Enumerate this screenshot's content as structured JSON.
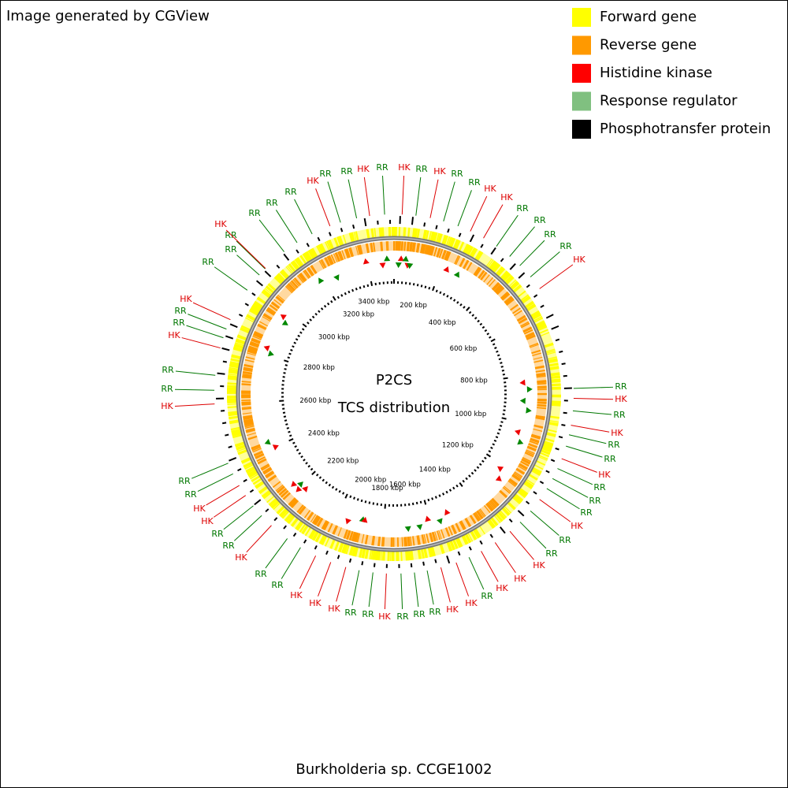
{
  "header": {
    "credit": "Image generated by CGView"
  },
  "legend": [
    {
      "label": "Forward gene",
      "color": "#ffff00"
    },
    {
      "label": "Reverse gene",
      "color": "#ff9900"
    },
    {
      "label": "Histidine kinase",
      "color": "#ff0000"
    },
    {
      "label": "Response regulator",
      "color": "#80c080"
    },
    {
      "label": "Phosphotransfer protein",
      "color": "#000000"
    }
  ],
  "center": {
    "title": "P2CS",
    "subtitle": "TCS distribution"
  },
  "scale_labels": [
    "200 kbp",
    "400 kbp",
    "600 kbp",
    "800 kbp",
    "1000 kbp",
    "1200 kbp",
    "1400 kbp",
    "1600 kbp",
    "1800 kbp",
    "2000 kbp",
    "2200 kbp",
    "2400 kbp",
    "2600 kbp",
    "2800 kbp",
    "3000 kbp",
    "3200 kbp",
    "3400 kbp"
  ],
  "feature_labels": [
    {
      "text": "HK",
      "color": "#dd0000"
    },
    {
      "text": "RR",
      "color": "#007700"
    },
    {
      "text": "RR",
      "color": "#007700"
    },
    {
      "text": "HK",
      "color": "#dd0000"
    },
    {
      "text": "RR",
      "color": "#007700"
    },
    {
      "text": "HK",
      "color": "#dd0000"
    },
    {
      "text": "RR",
      "color": "#007700"
    },
    {
      "text": "HK",
      "color": "#dd0000"
    },
    {
      "text": "RR",
      "color": "#007700"
    },
    {
      "text": "RR",
      "color": "#007700"
    },
    {
      "text": "HK",
      "color": "#dd0000"
    },
    {
      "text": "HK",
      "color": "#dd0000"
    },
    {
      "text": "RR",
      "color": "#007700"
    },
    {
      "text": "RR",
      "color": "#007700"
    },
    {
      "text": "RR",
      "color": "#007700"
    },
    {
      "text": "RR",
      "color": "#007700"
    },
    {
      "text": "HK",
      "color": "#dd0000"
    },
    {
      "text": "RR",
      "color": "#007700"
    },
    {
      "text": "HK",
      "color": "#dd0000"
    },
    {
      "text": "RR",
      "color": "#007700"
    },
    {
      "text": "HK",
      "color": "#dd0000"
    },
    {
      "text": "RR",
      "color": "#007700"
    },
    {
      "text": "RR",
      "color": "#007700"
    },
    {
      "text": "HK",
      "color": "#dd0000"
    },
    {
      "text": "RR",
      "color": "#007700"
    },
    {
      "text": "RR",
      "color": "#007700"
    },
    {
      "text": "RR",
      "color": "#007700"
    },
    {
      "text": "HK",
      "color": "#dd0000"
    },
    {
      "text": "RR",
      "color": "#007700"
    },
    {
      "text": "RR",
      "color": "#007700"
    },
    {
      "text": "HK",
      "color": "#dd0000"
    },
    {
      "text": "HK",
      "color": "#dd0000"
    },
    {
      "text": "HK",
      "color": "#dd0000"
    },
    {
      "text": "RR",
      "color": "#007700"
    },
    {
      "text": "HK",
      "color": "#dd0000"
    },
    {
      "text": "HK",
      "color": "#dd0000"
    },
    {
      "text": "RR",
      "color": "#007700"
    },
    {
      "text": "RR",
      "color": "#007700"
    },
    {
      "text": "RR",
      "color": "#007700"
    },
    {
      "text": "HK",
      "color": "#dd0000"
    },
    {
      "text": "RR",
      "color": "#007700"
    },
    {
      "text": "RR",
      "color": "#007700"
    },
    {
      "text": "HK",
      "color": "#dd0000"
    },
    {
      "text": "HK",
      "color": "#dd0000"
    },
    {
      "text": "HK",
      "color": "#dd0000"
    },
    {
      "text": "RR",
      "color": "#007700"
    },
    {
      "text": "RR",
      "color": "#007700"
    },
    {
      "text": "HK",
      "color": "#dd0000"
    },
    {
      "text": "RR",
      "color": "#007700"
    },
    {
      "text": "RR",
      "color": "#007700"
    },
    {
      "text": "HK",
      "color": "#dd0000"
    },
    {
      "text": "HK",
      "color": "#dd0000"
    },
    {
      "text": "RR",
      "color": "#007700"
    },
    {
      "text": "RR",
      "color": "#007700"
    },
    {
      "text": "HK",
      "color": "#dd0000"
    },
    {
      "text": "RR",
      "color": "#007700"
    },
    {
      "text": "RR",
      "color": "#007700"
    },
    {
      "text": "HK",
      "color": "#dd0000"
    },
    {
      "text": "RR",
      "color": "#007700"
    },
    {
      "text": "RR",
      "color": "#007700"
    },
    {
      "text": "HK",
      "color": "#dd0000"
    },
    {
      "text": "RR",
      "color": "#007700"
    },
    {
      "text": "RR",
      "color": "#007700"
    },
    {
      "text": "RR",
      "color": "#007700"
    },
    {
      "text": "HK",
      "color": "#dd0000"
    },
    {
      "text": "RR",
      "color": "#007700"
    },
    {
      "text": "RR",
      "color": "#007700"
    },
    {
      "text": "RR",
      "color": "#007700"
    }
  ],
  "footer": {
    "caption": "Burkholderia sp. CCGE1002"
  }
}
